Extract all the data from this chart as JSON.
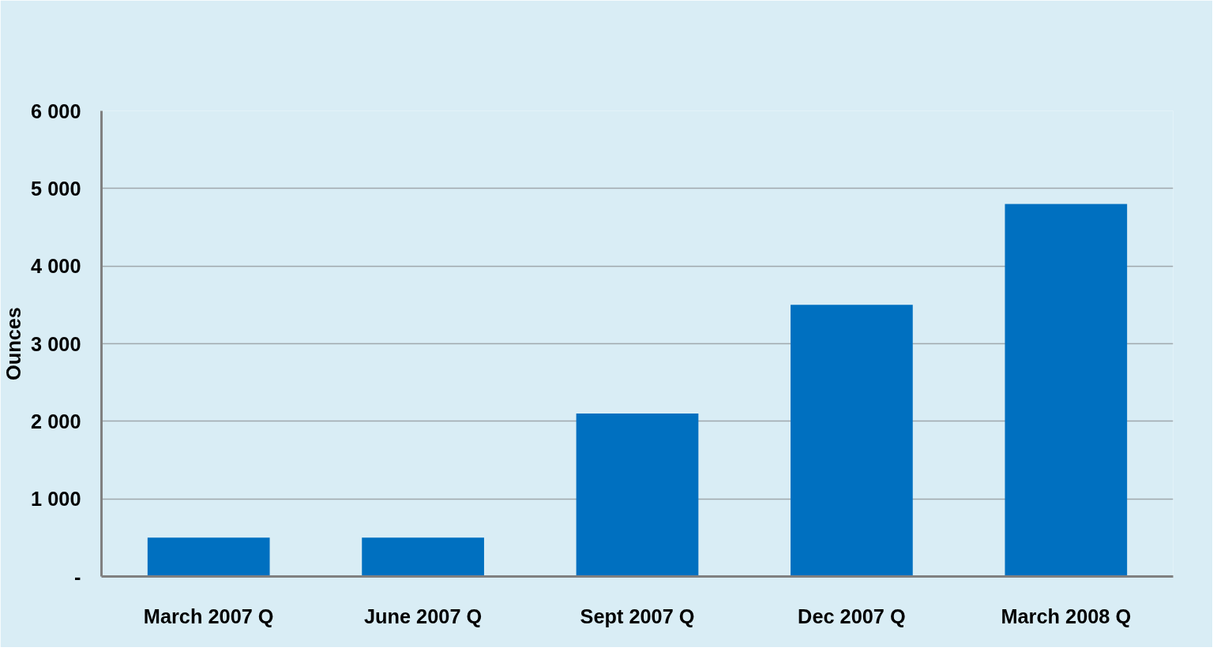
{
  "chart_data": {
    "type": "bar",
    "ylabel": "Ounces",
    "categories": [
      "March 2007 Q",
      "June 2007 Q",
      "Sept 2007 Q",
      "Dec 2007 Q",
      "March 2008 Q"
    ],
    "values": [
      500,
      500,
      2100,
      3500,
      4800
    ],
    "color": "#0070c0",
    "ylim": [
      0,
      6000
    ],
    "yticks": [
      {
        "value": 0,
        "label": "-"
      },
      {
        "value": 1000,
        "label": "1 000"
      },
      {
        "value": 2000,
        "label": "2 000"
      },
      {
        "value": 3000,
        "label": "3 000"
      },
      {
        "value": 4000,
        "label": "4 000"
      },
      {
        "value": 5000,
        "label": "5 000"
      },
      {
        "value": 6000,
        "label": "6 000"
      }
    ],
    "grid": "y"
  }
}
